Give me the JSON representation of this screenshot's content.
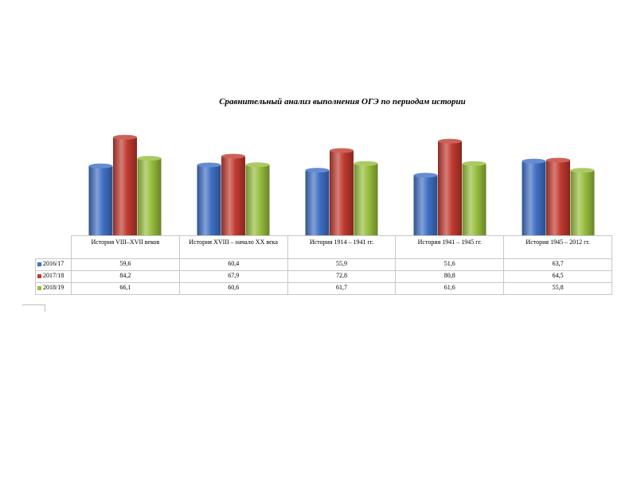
{
  "chart_data": {
    "type": "bar",
    "title": "Сравнительный анализ выполнения ОГЭ по периодам истории",
    "categories": [
      "История VIII–XVII веков",
      "История XVIII – начало XX века",
      "История 1914 – 1941 гг.",
      "История 1941 – 1945 гг.",
      "История 1945 – 2012 гг."
    ],
    "series": [
      {
        "name": "2016/17",
        "color": "#3f6fc4",
        "values": [
          59.6,
          60.4,
          55.9,
          51.6,
          63.7
        ],
        "labels": [
          "59,6",
          "60,4",
          "55,9",
          "51,6",
          "63,7"
        ]
      },
      {
        "name": "2017/18",
        "color": "#c0392e",
        "values": [
          84.2,
          67.9,
          72.8,
          80.8,
          64.5
        ],
        "labels": [
          "84,2",
          "67,9",
          "72,8",
          "80,8",
          "64,5"
        ]
      },
      {
        "name": "2018/19",
        "color": "#96bd3c",
        "values": [
          66.1,
          60.6,
          61.7,
          61.6,
          55.8
        ],
        "labels": [
          "66,1",
          "60,6",
          "61,7",
          "61,6",
          "55,8"
        ]
      }
    ],
    "ylim": [
      0,
      90
    ],
    "grid": false,
    "legend": "data-table"
  }
}
